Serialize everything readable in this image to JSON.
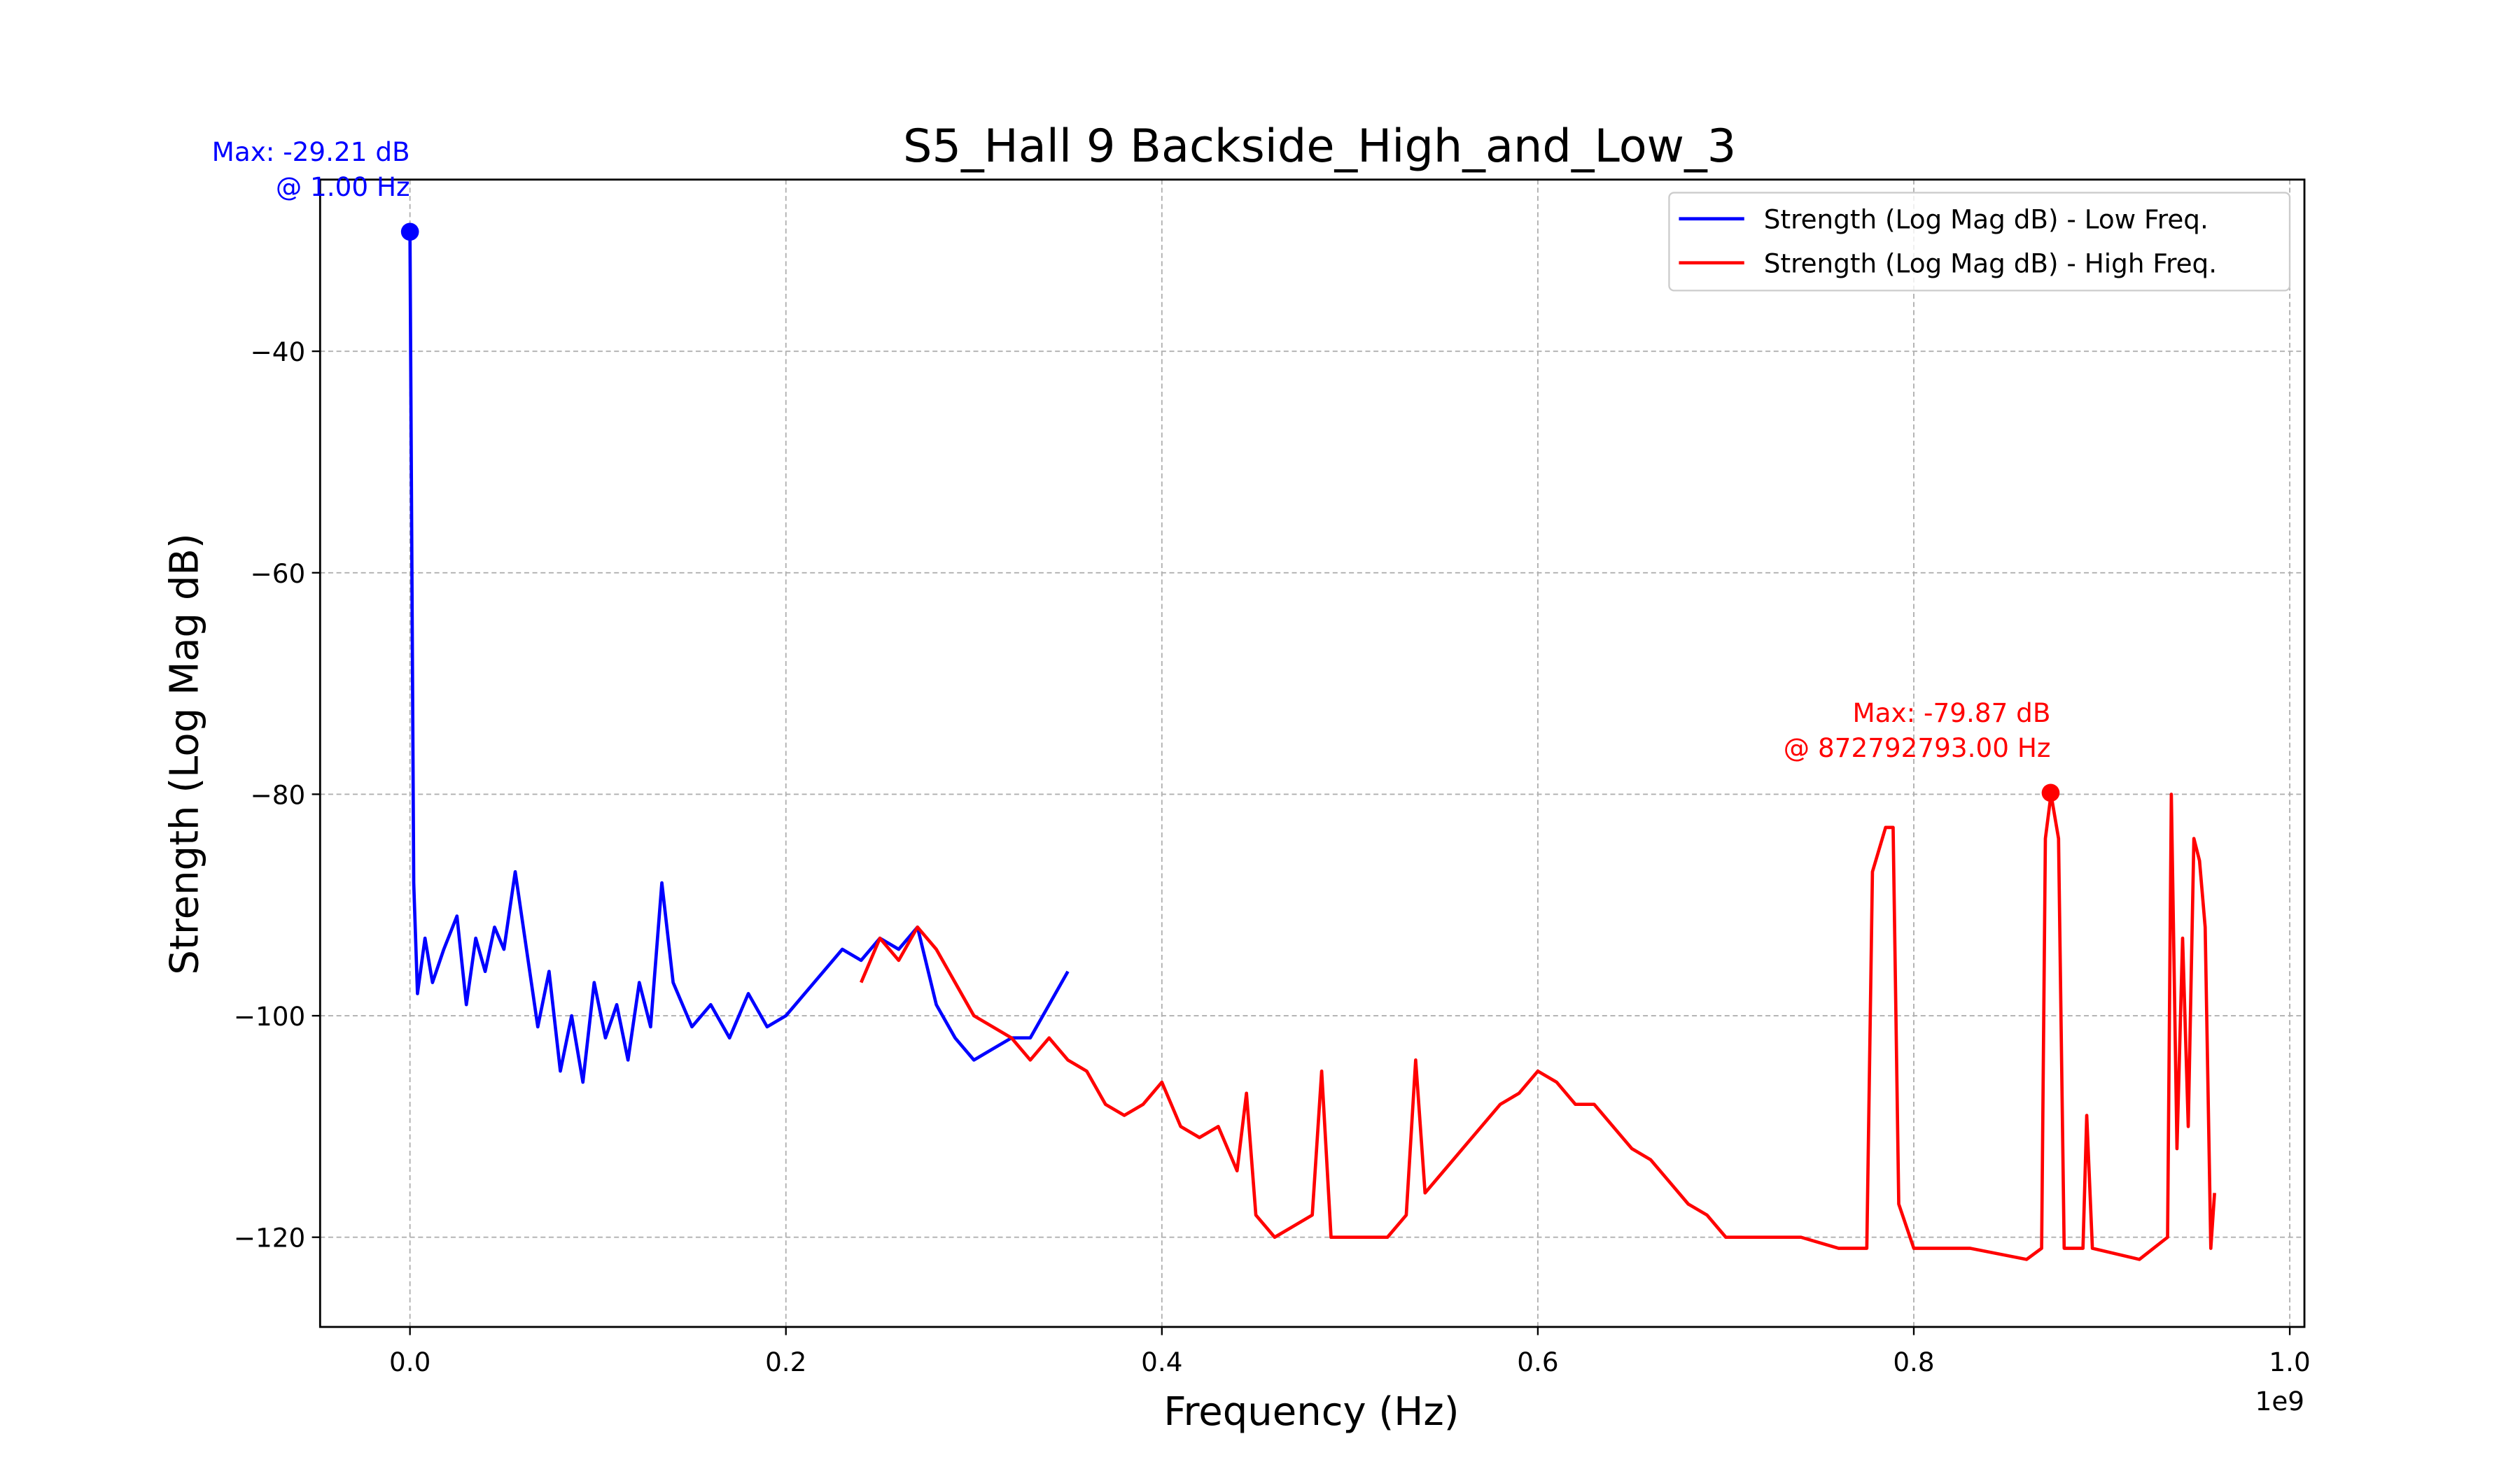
{
  "chart_data": {
    "type": "line",
    "title": "S5_Hall 9 Backside_High_and_Low_3",
    "xlabel": "Frequency (Hz)",
    "ylabel": "Strength (Log Mag dB)",
    "x_offset_label": "1e9",
    "xlim": [
      -47800000,
      1007800000
    ],
    "ylim": [
      -128.1,
      -24.5
    ],
    "xticks": [
      {
        "value": 0,
        "label": "0.0"
      },
      {
        "value": 200000000,
        "label": "0.2"
      },
      {
        "value": 400000000,
        "label": "0.4"
      },
      {
        "value": 600000000,
        "label": "0.6"
      },
      {
        "value": 800000000,
        "label": "0.8"
      },
      {
        "value": 1000000000,
        "label": "1.0"
      }
    ],
    "yticks": [
      {
        "value": -120,
        "label": "−120"
      },
      {
        "value": -100,
        "label": "−100"
      },
      {
        "value": -80,
        "label": "−80"
      },
      {
        "value": -60,
        "label": "−60"
      },
      {
        "value": -40,
        "label": "−40"
      }
    ],
    "grid": true,
    "legend": "upper right",
    "series": [
      {
        "name": "Strength (Log Mag dB) - Low Freq.",
        "color": "#0000ff",
        "x": [
          1,
          2000000.0,
          4000000.0,
          8000000.0,
          12000000.0,
          18000000.0,
          25000000.0,
          30000000.0,
          35000000.0,
          40000000.0,
          45000000.0,
          50000000.0,
          56000000.0,
          62000000.0,
          68000000.0,
          74000000.0,
          80000000.0,
          86000000.0,
          92000000.0,
          98000000.0,
          104000000.0,
          110000000.0,
          116000000.0,
          122000000.0,
          128000000.0,
          134000000.0,
          140000000.0,
          150000000.0,
          160000000.0,
          170000000.0,
          180000000.0,
          190000000.0,
          200000000.0,
          210000000.0,
          220000000.0,
          230000000.0,
          240000000.0,
          250000000.0,
          260000000.0,
          270000000.0,
          280000000.0,
          290000000.0,
          300000000.0,
          310000000.0,
          320000000.0,
          330000000.0,
          340000000.0,
          350000000.0
        ],
        "values": [
          -29.21,
          -88,
          -98,
          -93,
          -97,
          -94,
          -91,
          -99,
          -93,
          -96,
          -92,
          -94,
          -87,
          -94,
          -101,
          -96,
          -105,
          -100,
          -106,
          -97,
          -102,
          -99,
          -104,
          -97,
          -101,
          -88,
          -97,
          -101,
          -99,
          -102,
          -98,
          -101,
          -100,
          -98,
          -96,
          -94,
          -95,
          -93,
          -94,
          -92,
          -99,
          -102,
          -104,
          -103,
          -102,
          -102,
          -99,
          -96
        ]
      },
      {
        "name": "Strength (Log Mag dB) - High Freq.",
        "color": "#ff0000",
        "x": [
          240000000.0,
          250000000.0,
          260000000.0,
          270000000.0,
          280000000.0,
          290000000.0,
          300000000.0,
          310000000.0,
          320000000.0,
          330000000.0,
          340000000.0,
          350000000.0,
          360000000.0,
          370000000.0,
          380000000.0,
          390000000.0,
          400000000.0,
          410000000.0,
          420000000.0,
          430000000.0,
          440000000.0,
          445000000.0,
          450000000.0,
          460000000.0,
          470000000.0,
          480000000.0,
          485000000.0,
          490000000.0,
          500000000.0,
          520000000.0,
          530000000.0,
          535000000.0,
          540000000.0,
          550000000.0,
          560000000.0,
          570000000.0,
          580000000.0,
          590000000.0,
          600000000.0,
          610000000.0,
          620000000.0,
          630000000.0,
          640000000.0,
          650000000.0,
          660000000.0,
          670000000.0,
          680000000.0,
          690000000.0,
          700000000.0,
          720000000.0,
          740000000.0,
          760000000.0,
          775000000.0,
          778000000.0,
          785000000.0,
          789000000.0,
          792000000.0,
          800000000.0,
          830000000.0,
          860000000.0,
          868000000.0,
          870000000.0,
          873000000.0,
          877000000.0,
          880000000.0,
          890000000.0,
          892000000.0,
          895000000.0,
          920000000.0,
          935000000.0,
          937000000.0,
          940000000.0,
          943000000.0,
          946000000.0,
          949000000.0,
          952000000.0,
          955000000.0,
          958000000.0,
          960000000.0
        ],
        "values": [
          -97,
          -93,
          -95,
          -92,
          -94,
          -97,
          -100,
          -101,
          -102,
          -104,
          -102,
          -104,
          -105,
          -108,
          -109,
          -108,
          -106,
          -110,
          -111,
          -110,
          -114,
          -107,
          -118,
          -120,
          -119,
          -118,
          -105,
          -120,
          -120,
          -120,
          -118,
          -104,
          -116,
          -114,
          -112,
          -110,
          -108,
          -107,
          -105,
          -106,
          -108,
          -108,
          -110,
          -112,
          -113,
          -115,
          -117,
          -118,
          -120,
          -120,
          -120,
          -121,
          -121,
          -87,
          -83,
          -83,
          -117,
          -121,
          -121,
          -122,
          -121,
          -84,
          -80,
          -84,
          -121,
          -121,
          -109,
          -121,
          -122,
          -120,
          -80,
          -112,
          -93,
          -110,
          -84,
          -86,
          -92,
          -121,
          -116
        ]
      }
    ],
    "annotations": [
      {
        "lines": [
          "Max: -29.21 dB",
          "@ 1.00 Hz"
        ],
        "x": 1,
        "y": -29.21,
        "color": "#0000ff"
      },
      {
        "lines": [
          "Max: -79.87 dB",
          "@ 872792793.00 Hz"
        ],
        "x": 872792793,
        "y": -79.87,
        "color": "#ff0000"
      }
    ]
  }
}
